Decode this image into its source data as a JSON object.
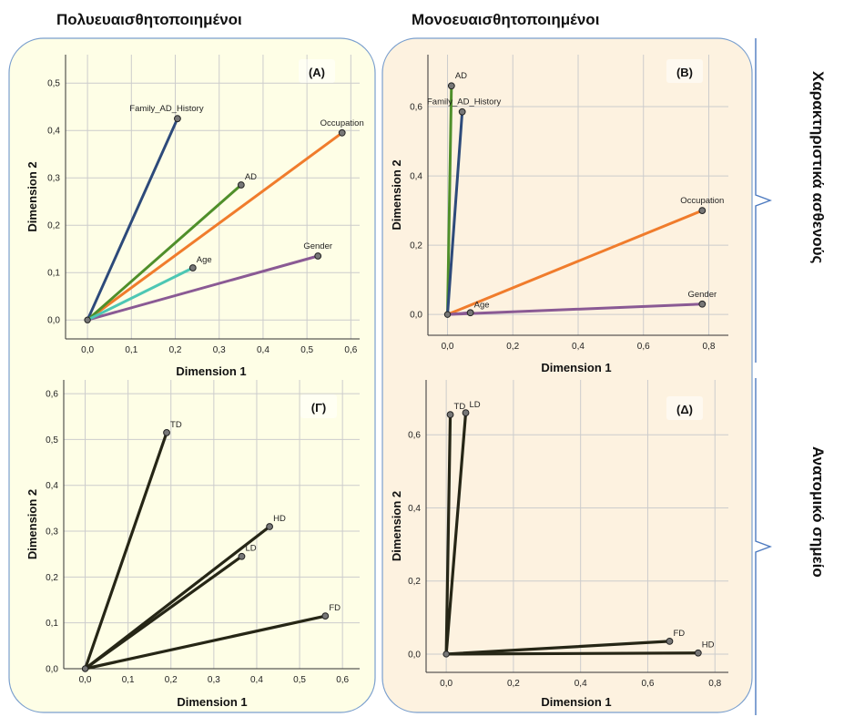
{
  "titles": {
    "left": "Πολυευαισθητοποιημένοι",
    "right": "Μονοευαισθητοποιημένοι",
    "row_top": "Χαρακτηριστικά ασθενούς",
    "row_bottom": "Ανατομικό σημείο"
  },
  "colors": {
    "panel_left": "#fefee6",
    "panel_right": "#fdf2e0",
    "grid": "#cccccc",
    "brace": "#4e7bc0",
    "navy": "#2d4a7a",
    "green": "#4f8f2a",
    "orange": "#f07c2c",
    "teal": "#4dc7b4",
    "purple": "#8a5a94",
    "dark": "#262616"
  },
  "chart_data": [
    {
      "panel": "(A)",
      "type": "line",
      "xlabel": "Dimension 1",
      "ylabel": "Dimension 2",
      "xticks": [
        "0,0",
        "0,1",
        "0,2",
        "0,3",
        "0,4",
        "0,5",
        "0,6"
      ],
      "yticks": [
        "0,0",
        "0,1",
        "0,2",
        "0,3",
        "0,4",
        "0,5"
      ],
      "xlim": [
        -0.05,
        0.62
      ],
      "ylim": [
        -0.04,
        0.56
      ],
      "series": [
        {
          "name": "Family_AD_History",
          "x": 0.205,
          "y": 0.425,
          "color": "navy"
        },
        {
          "name": "Occupation",
          "x": 0.58,
          "y": 0.395,
          "color": "orange"
        },
        {
          "name": "AD",
          "x": 0.35,
          "y": 0.285,
          "color": "green"
        },
        {
          "name": "Gender",
          "x": 0.525,
          "y": 0.135,
          "color": "purple"
        },
        {
          "name": "Age",
          "x": 0.24,
          "y": 0.11,
          "color": "teal"
        }
      ]
    },
    {
      "panel": "(B)",
      "type": "line",
      "xlabel": "Dimension 1",
      "ylabel": "Dimension 2",
      "xticks": [
        "0,0",
        "0,2",
        "0,4",
        "0,6",
        "0,8"
      ],
      "yticks": [
        "0,0",
        "0,2",
        "0,4",
        "0,6"
      ],
      "xlim": [
        -0.06,
        0.86
      ],
      "ylim": [
        -0.06,
        0.75
      ],
      "series": [
        {
          "name": "AD",
          "x": 0.012,
          "y": 0.66,
          "color": "green"
        },
        {
          "name": "Family_AD_History",
          "x": 0.045,
          "y": 0.585,
          "color": "navy"
        },
        {
          "name": "Occupation",
          "x": 0.78,
          "y": 0.3,
          "color": "orange"
        },
        {
          "name": "Gender",
          "x": 0.78,
          "y": 0.03,
          "color": "purple"
        },
        {
          "name": "Age",
          "x": 0.07,
          "y": 0.005,
          "color": "purple"
        }
      ]
    },
    {
      "panel": "(Γ)",
      "type": "line",
      "xlabel": "Dimension 1",
      "ylabel": "Dimension 2",
      "xticks": [
        "0,0",
        "0,1",
        "0,2",
        "0,3",
        "0,4",
        "0,5",
        "0,6"
      ],
      "yticks": [
        "0,0",
        "0,1",
        "0,2",
        "0,3",
        "0,4",
        "0,5",
        "0,6"
      ],
      "xlim": [
        -0.05,
        0.64
      ],
      "ylim": [
        0.0,
        0.63
      ],
      "series": [
        {
          "name": "TD",
          "x": 0.19,
          "y": 0.515,
          "color": "dark"
        },
        {
          "name": "HD",
          "x": 0.43,
          "y": 0.31,
          "color": "dark"
        },
        {
          "name": "LD",
          "x": 0.365,
          "y": 0.245,
          "color": "dark"
        },
        {
          "name": "FD",
          "x": 0.56,
          "y": 0.115,
          "color": "dark"
        }
      ]
    },
    {
      "panel": "(Δ)",
      "type": "line",
      "xlabel": "Dimension 1",
      "ylabel": "Dimension 2",
      "xticks": [
        "0,0",
        "0,2",
        "0,4",
        "0,6",
        "0,8"
      ],
      "yticks": [
        "0,0",
        "0,2",
        "0,4",
        "0,6"
      ],
      "xlim": [
        -0.06,
        0.84
      ],
      "ylim": [
        -0.05,
        0.75
      ],
      "series": [
        {
          "name": "TD",
          "x": 0.012,
          "y": 0.655,
          "color": "dark"
        },
        {
          "name": "LD",
          "x": 0.058,
          "y": 0.66,
          "color": "dark"
        },
        {
          "name": "FD",
          "x": 0.665,
          "y": 0.035,
          "color": "dark"
        },
        {
          "name": "HD",
          "x": 0.75,
          "y": 0.003,
          "color": "dark"
        }
      ]
    }
  ]
}
